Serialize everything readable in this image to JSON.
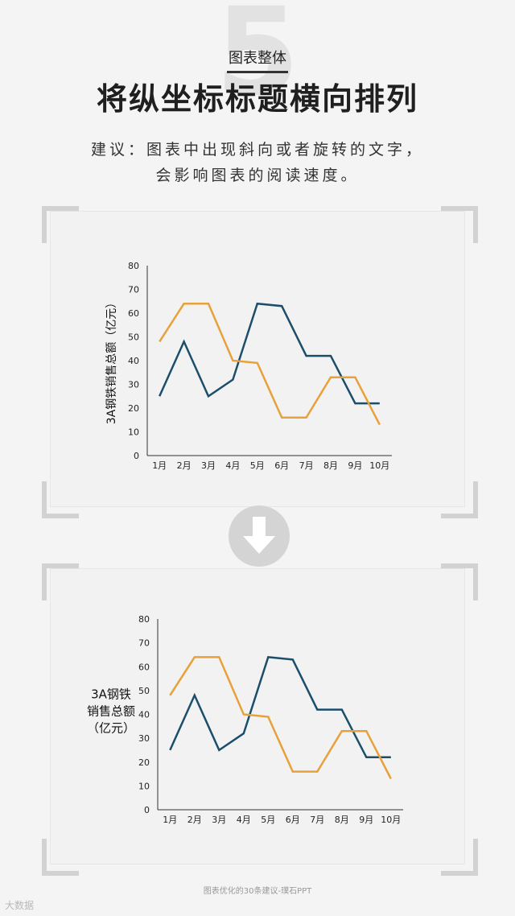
{
  "header": {
    "number": "5",
    "section": "图表整体",
    "title": "将纵坐标标题横向排列",
    "advice_line1": "建议：图表中出现斜向或者旋转的文字，",
    "advice_line2": "会影响图表的阅读速度。"
  },
  "footer": {
    "caption": "图表优化的30条建议-璞石PPT"
  },
  "watermark": {
    "text": "大数据"
  },
  "colors": {
    "series_a": "#1b4e6b",
    "series_b": "#e8a13a",
    "axis": "#333333"
  },
  "chart_data": [
    {
      "type": "line",
      "categories": [
        "1月",
        "2月",
        "3月",
        "4月",
        "5月",
        "6月",
        "7月",
        "8月",
        "9月",
        "10月"
      ],
      "ylabel": "3A钢铁销售总额（亿元）",
      "ylim": [
        0,
        80
      ],
      "yticks": [
        0,
        10,
        20,
        30,
        40,
        50,
        60,
        70,
        80
      ],
      "ylabel_orientation": "rotated",
      "series": [
        {
          "values": [
            25,
            48,
            25,
            32,
            64,
            63,
            42,
            42,
            22,
            22
          ]
        },
        {
          "values": [
            48,
            64,
            64,
            40,
            39,
            16,
            16,
            33,
            33,
            13
          ]
        }
      ]
    },
    {
      "type": "line",
      "categories": [
        "1月",
        "2月",
        "3月",
        "4月",
        "5月",
        "6月",
        "7月",
        "8月",
        "9月",
        "10月"
      ],
      "ylabel_lines": [
        "3A钢铁",
        "销售总额",
        "（亿元）"
      ],
      "ylim": [
        0,
        80
      ],
      "yticks": [
        0,
        10,
        20,
        30,
        40,
        50,
        60,
        70,
        80
      ],
      "ylabel_orientation": "horizontal",
      "series": [
        {
          "values": [
            25,
            48,
            25,
            32,
            64,
            63,
            42,
            42,
            22,
            22
          ]
        },
        {
          "values": [
            48,
            64,
            64,
            40,
            39,
            16,
            16,
            33,
            33,
            13
          ]
        }
      ]
    }
  ]
}
